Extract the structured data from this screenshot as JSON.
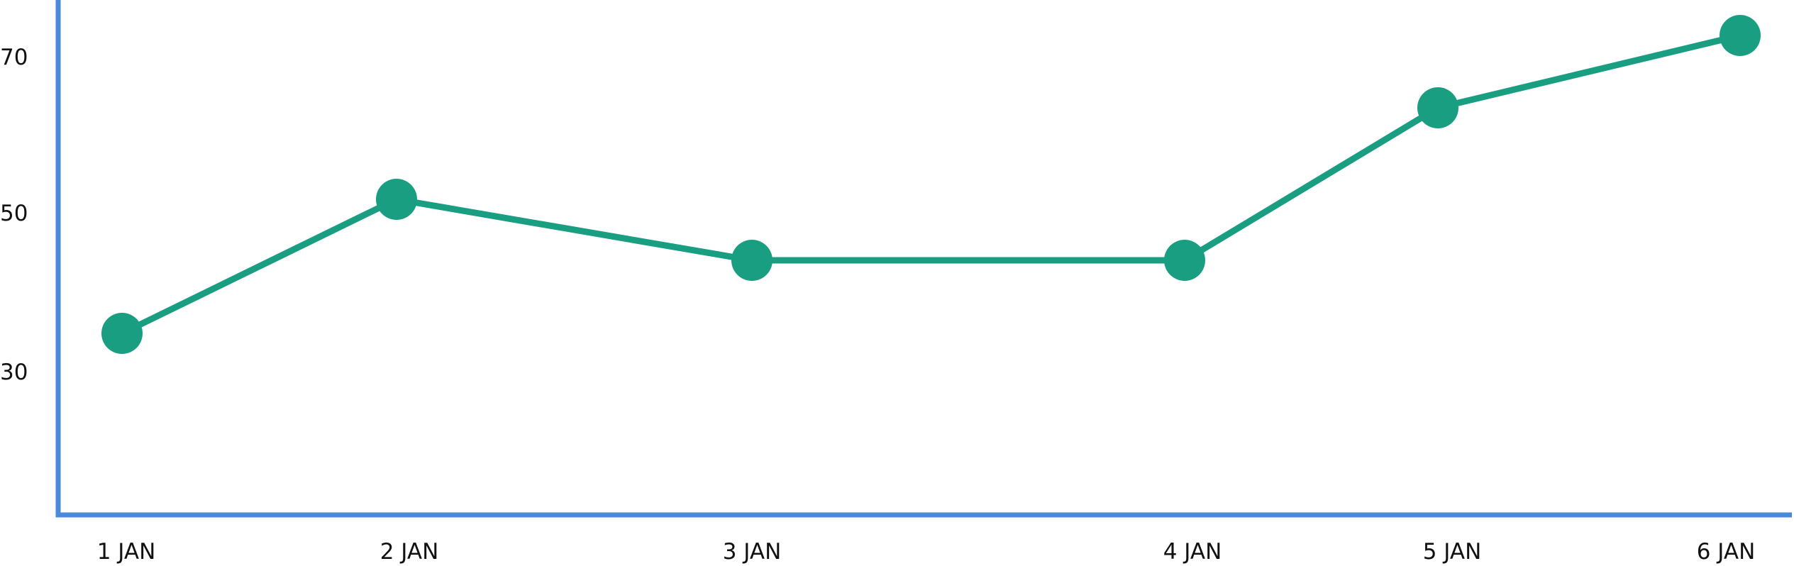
{
  "chart_data": {
    "type": "line",
    "categories": [
      "1 JAN",
      "2 JAN",
      "3 JAN",
      "4 JAN",
      "5 JAN",
      "6 JAN"
    ],
    "x": [
      "2000-01-01",
      "2000-01-02",
      "2000-01-03",
      "2000-01-04",
      "2000-01-05",
      "2000-01-06"
    ],
    "values": [
      34,
      52,
      44,
      44,
      64,
      73
    ],
    "y_ticks": [
      30,
      50,
      70
    ],
    "ylim": [
      12,
      76
    ],
    "title": "",
    "xlabel": "",
    "ylabel": "",
    "grid": false,
    "legend": "none",
    "colors": {
      "series": "#1a9e82",
      "axis": "#4a8ad8",
      "text": "#111111"
    }
  }
}
